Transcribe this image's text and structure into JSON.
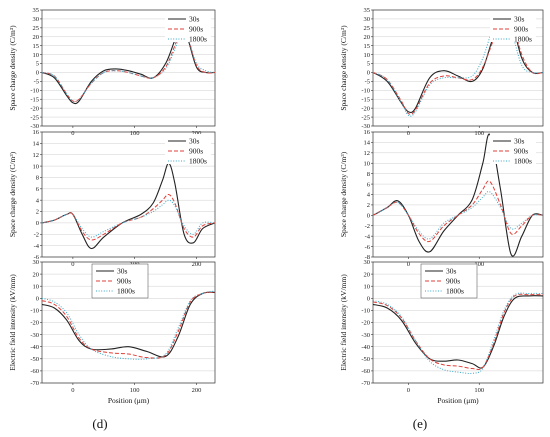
{
  "colors": {
    "s30": "#222222",
    "s900": "#e0403a",
    "s1800": "#3aa8c8",
    "grid": "#cfcfcf"
  },
  "chart_data": [
    {
      "type": "line",
      "figure": "(d)",
      "title": "",
      "xlabel": "Position (μm)",
      "ylabel": "Space charge density (C/m³)",
      "xlim": [
        -50,
        230
      ],
      "ylim": [
        -30,
        35
      ],
      "xticks": [
        0,
        100,
        200
      ],
      "yticks": [
        -30,
        -25,
        -20,
        -15,
        -10,
        -5,
        0,
        5,
        10,
        15,
        20,
        25,
        30,
        35
      ],
      "x": [
        -50,
        -30,
        -10,
        0,
        10,
        30,
        50,
        70,
        90,
        110,
        130,
        150,
        165,
        175,
        185,
        200,
        215,
        230
      ],
      "series": [
        {
          "name": "30s",
          "style": "solid",
          "values": [
            0,
            -3,
            -13,
            -17,
            -16,
            -5,
            1,
            2,
            1,
            -1,
            -3,
            5,
            18,
            25,
            20,
            3,
            0,
            0
          ]
        },
        {
          "name": "900s",
          "style": "dashed",
          "values": [
            0,
            -2,
            -12,
            -16,
            -15,
            -6,
            0,
            1,
            0,
            -2,
            -3,
            3,
            15,
            24,
            21,
            4,
            0,
            0
          ]
        },
        {
          "name": "1800s",
          "style": "dotted",
          "values": [
            0,
            -2,
            -12,
            -16,
            -15,
            -6,
            0,
            1,
            0,
            -2,
            -3,
            2,
            13,
            22,
            20,
            5,
            1,
            0
          ]
        }
      ]
    },
    {
      "type": "line",
      "figure": "(d)",
      "title": "",
      "xlabel": "Position (μm)",
      "ylabel": "Space charge density (C/m³)",
      "xlim": [
        -50,
        230
      ],
      "ylim": [
        -6,
        16
      ],
      "xticks": [
        0,
        100,
        200
      ],
      "yticks": [
        -6,
        -4,
        -2,
        0,
        2,
        4,
        6,
        8,
        10,
        12,
        14,
        16
      ],
      "x": [
        -50,
        -30,
        -10,
        0,
        15,
        30,
        50,
        80,
        110,
        130,
        145,
        155,
        165,
        180,
        195,
        210,
        230
      ],
      "series": [
        {
          "name": "30s",
          "style": "solid",
          "values": [
            0,
            0.5,
            1.5,
            1.5,
            -2,
            -4.5,
            -2.5,
            0,
            1.5,
            3.5,
            7.5,
            10.5,
            7,
            -2,
            -3.5,
            -1,
            0
          ]
        },
        {
          "name": "900s",
          "style": "dashed",
          "values": [
            0,
            0.5,
            1.5,
            1.5,
            -1.5,
            -3,
            -2,
            0,
            1,
            2.5,
            4,
            5,
            3.5,
            -1,
            -2.5,
            -0.5,
            0
          ]
        },
        {
          "name": "1800s",
          "style": "dotted",
          "values": [
            0,
            0.5,
            1.5,
            1.5,
            -1,
            -2.5,
            -1.5,
            0,
            1,
            2,
            3.2,
            4,
            3,
            -0.5,
            -2,
            0,
            0
          ]
        }
      ]
    },
    {
      "type": "line",
      "figure": "(d)",
      "title": "",
      "xlabel": "Position (μm)",
      "ylabel": "Electric field intensity (kV/mm)",
      "xlim": [
        -50,
        230
      ],
      "ylim": [
        -70,
        30
      ],
      "xticks": [
        -100,
        0,
        100,
        200
      ],
      "yticks": [
        -70,
        -60,
        -50,
        -40,
        -30,
        -20,
        -10,
        0,
        10,
        20,
        30
      ],
      "x": [
        -50,
        -30,
        -10,
        10,
        30,
        60,
        90,
        120,
        150,
        170,
        190,
        210,
        230
      ],
      "series": [
        {
          "name": "30s",
          "style": "solid",
          "values": [
            -5,
            -8,
            -18,
            -35,
            -42,
            -42,
            -40,
            -44,
            -48,
            -32,
            -5,
            4,
            5
          ]
        },
        {
          "name": "900s",
          "style": "dashed",
          "values": [
            -2,
            -5,
            -15,
            -33,
            -42,
            -45,
            -46,
            -49,
            -47,
            -28,
            -3,
            4,
            5
          ]
        },
        {
          "name": "1800s",
          "style": "dotted",
          "values": [
            0,
            -3,
            -12,
            -30,
            -42,
            -48,
            -50,
            -50,
            -46,
            -25,
            -2,
            4,
            6
          ]
        }
      ]
    },
    {
      "type": "line",
      "figure": "(e)",
      "title": "",
      "xlabel": "Position (μm)",
      "ylabel": "Space charge density (C/m³)",
      "xlim": [
        -50,
        190
      ],
      "ylim": [
        -30,
        35
      ],
      "xticks": [
        0,
        100
      ],
      "yticks": [
        -30,
        -25,
        -20,
        -15,
        -10,
        -5,
        0,
        5,
        10,
        15,
        20,
        25,
        30,
        35
      ],
      "x": [
        -50,
        -30,
        -10,
        0,
        10,
        30,
        50,
        70,
        90,
        105,
        120,
        135,
        145,
        160,
        175,
        190
      ],
      "series": [
        {
          "name": "30s",
          "style": "solid",
          "values": [
            0,
            -5,
            -17,
            -22,
            -20,
            -3,
            1,
            -2,
            -5,
            2,
            20,
            32,
            30,
            8,
            0,
            0
          ]
        },
        {
          "name": "900s",
          "style": "dashed",
          "values": [
            0,
            -4,
            -16,
            -23,
            -21,
            -6,
            -2,
            -3,
            -4,
            3,
            18,
            31,
            31,
            10,
            0,
            0
          ]
        },
        {
          "name": "1800s",
          "style": "dotted",
          "values": [
            0,
            -4,
            -17,
            -24,
            -22,
            -7,
            -3,
            -3,
            -2,
            8,
            25,
            30,
            24,
            4,
            0,
            0
          ]
        }
      ]
    },
    {
      "type": "line",
      "figure": "(e)",
      "title": "",
      "xlabel": "Position (μm)",
      "ylabel": "Space charge density (C/m³)",
      "xlim": [
        -50,
        190
      ],
      "ylim": [
        -8,
        16
      ],
      "xticks": [
        0,
        100
      ],
      "yticks": [
        -8,
        -6,
        -4,
        -2,
        0,
        2,
        4,
        6,
        8,
        10,
        12,
        14,
        16
      ],
      "x": [
        -50,
        -30,
        -15,
        0,
        15,
        30,
        50,
        70,
        90,
        105,
        115,
        130,
        145,
        160,
        175,
        190
      ],
      "series": [
        {
          "name": "30s",
          "style": "solid",
          "values": [
            0,
            1.5,
            2.8,
            0,
            -5,
            -7,
            -3,
            0,
            3,
            10,
            15.5,
            5,
            -7.5,
            -4,
            0,
            0
          ]
        },
        {
          "name": "900s",
          "style": "dashed",
          "values": [
            0,
            1.5,
            2.5,
            0,
            -3.5,
            -5,
            -2,
            0,
            2,
            5,
            6.5,
            2,
            -3.5,
            -2,
            0,
            0
          ]
        },
        {
          "name": "1800s",
          "style": "dotted",
          "values": [
            0,
            1.5,
            2.5,
            0,
            -3,
            -4.5,
            -1.5,
            0,
            1.5,
            3.5,
            4.5,
            1.5,
            -2.5,
            -1.5,
            0,
            0
          ]
        }
      ]
    },
    {
      "type": "line",
      "figure": "(e)",
      "title": "",
      "xlabel": "Position (μm)",
      "ylabel": "Electric field intensity (kV/mm)",
      "xlim": [
        -50,
        190
      ],
      "ylim": [
        -70,
        30
      ],
      "xticks": [
        0,
        100
      ],
      "yticks": [
        -70,
        -60,
        -50,
        -40,
        -30,
        -20,
        -10,
        0,
        10,
        20,
        30
      ],
      "x": [
        -50,
        -30,
        -10,
        10,
        30,
        50,
        70,
        90,
        105,
        120,
        135,
        150,
        170,
        190
      ],
      "series": [
        {
          "name": "30s",
          "style": "solid",
          "values": [
            -5,
            -8,
            -18,
            -37,
            -50,
            -52,
            -51,
            -54,
            -57,
            -40,
            -15,
            0,
            2,
            2
          ]
        },
        {
          "name": "900s",
          "style": "dashed",
          "values": [
            -3,
            -6,
            -16,
            -35,
            -50,
            -55,
            -56,
            -58,
            -57,
            -38,
            -12,
            2,
            3,
            3
          ]
        },
        {
          "name": "1800s",
          "style": "dotted",
          "values": [
            -2,
            -5,
            -15,
            -35,
            -52,
            -59,
            -61,
            -62,
            -58,
            -35,
            -10,
            3,
            4,
            4
          ]
        }
      ]
    }
  ]
}
